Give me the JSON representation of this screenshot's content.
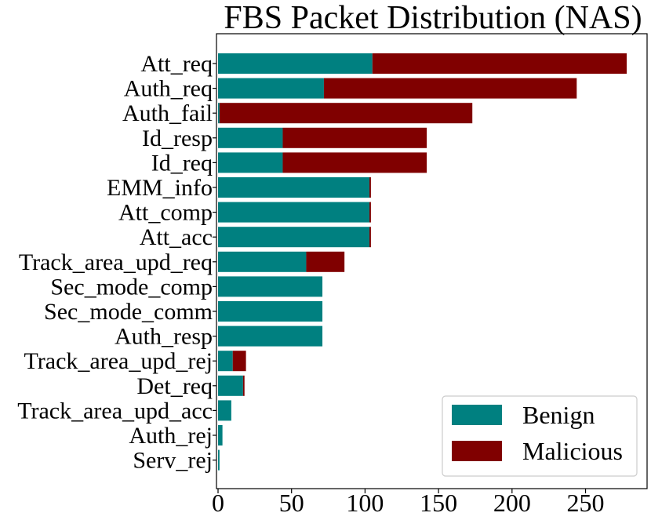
{
  "chart_data": {
    "type": "bar",
    "orientation": "horizontal",
    "stacked": true,
    "title": "FBS Packet Distribution (NAS)",
    "xlabel": "",
    "ylabel": "",
    "xlim": [
      0,
      292
    ],
    "xticks": [
      0,
      50,
      100,
      150,
      200,
      250
    ],
    "xtick_labels": [
      "0",
      "50",
      "100",
      "150",
      "200",
      "250"
    ],
    "categories": [
      "Att_req",
      "Auth_req",
      "Auth_fail",
      "Id_resp",
      "Id_req",
      "EMM_info",
      "Att_comp",
      "Att_acc",
      "Track_area_upd_req",
      "Sec_mode_comp",
      "Sec_mode_comm",
      "Auth_resp",
      "Track_area_upd_rej",
      "Det_req",
      "Track_area_upd_acc",
      "Auth_rej",
      "Serv_rej"
    ],
    "series": [
      {
        "name": "Benign",
        "color": "#008080",
        "values": [
          105,
          72,
          1,
          44,
          44,
          103,
          103,
          103,
          60,
          71,
          71,
          71,
          10,
          17,
          9,
          3,
          1
        ]
      },
      {
        "name": "Malicious",
        "color": "#800000",
        "values": [
          173,
          172,
          172,
          98,
          98,
          1,
          1,
          1,
          26,
          0,
          0,
          0,
          9,
          1,
          0,
          0,
          0
        ]
      }
    ],
    "legend": {
      "position": "lower-right"
    }
  }
}
